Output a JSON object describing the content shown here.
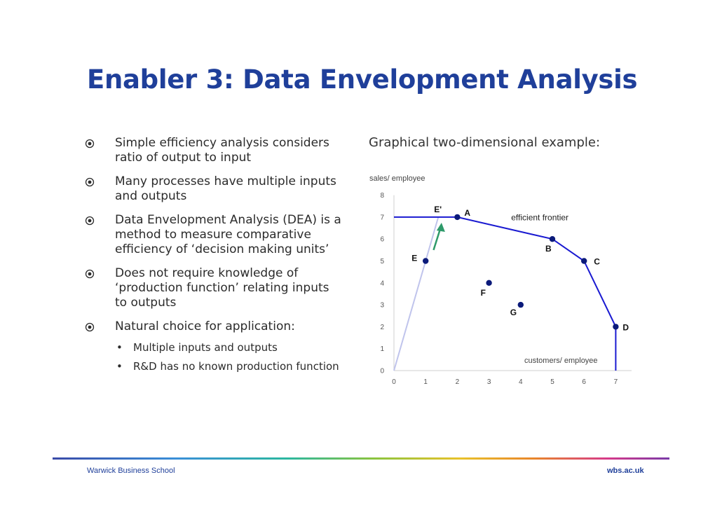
{
  "slide": {
    "title": "Enabler 3: Data Envelopment Analysis",
    "bullets": [
      {
        "lines": [
          "Simple efficiency analysis considers",
          "ratio of output to input"
        ]
      },
      {
        "lines": [
          "Many processes have multiple inputs",
          "and outputs"
        ]
      },
      {
        "lines": [
          "Data Envelopment Analysis (DEA) is a",
          "method to measure comparative",
          "efficiency of ‘decision making units’"
        ]
      },
      {
        "lines": [
          "Does not require knowledge of",
          "‘production function’ relating inputs",
          "to outputs"
        ]
      },
      {
        "lines": [
          "Natural choice for application:"
        ]
      }
    ],
    "subbullets": [
      "Multiple inputs and outputs",
      "R&D has no known production function"
    ],
    "chart_heading": "Graphical two-dimensional example:",
    "footer_left": "Warwick Business School",
    "footer_right": "wbs.ac.uk",
    "colors": {
      "title": "#1f3f9a",
      "frontier": "#1a1ad1",
      "point": "#0b1a7a",
      "arrow": "#2e9a6a",
      "ray": "#c0c4ec"
    }
  },
  "chart_data": {
    "type": "scatter",
    "ylabel": "sales/ employee",
    "xlabel": "customers/ employee",
    "xlim": [
      0,
      7.5
    ],
    "ylim": [
      0,
      8
    ],
    "xticks": [
      0,
      1,
      2,
      3,
      4,
      5,
      6,
      7
    ],
    "yticks": [
      0,
      1,
      2,
      3,
      4,
      5,
      6,
      7,
      8
    ],
    "points": [
      {
        "label": "A",
        "x": 2,
        "y": 7
      },
      {
        "label": "B",
        "x": 5,
        "y": 6
      },
      {
        "label": "C",
        "x": 6,
        "y": 5
      },
      {
        "label": "D",
        "x": 7,
        "y": 2
      },
      {
        "label": "E",
        "x": 1,
        "y": 5
      },
      {
        "label": "F",
        "x": 3,
        "y": 4
      },
      {
        "label": "G",
        "x": 4,
        "y": 3
      }
    ],
    "projection": {
      "label": "E'",
      "x": 1.4,
      "y": 7
    },
    "frontier": [
      [
        0,
        7
      ],
      [
        2,
        7
      ],
      [
        5,
        6
      ],
      [
        6,
        5
      ],
      [
        7,
        2
      ],
      [
        7,
        0
      ]
    ],
    "frontier_label": "efficient frontier"
  }
}
